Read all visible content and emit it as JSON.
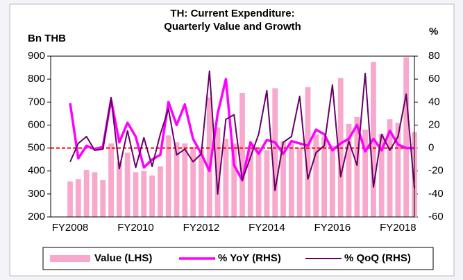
{
  "chart_data": {
    "type": "bar_line",
    "title": "TH: Current Expenditure:",
    "subtitle": "Quarterly Value and Growth",
    "ylabel": "Bn THB",
    "y2label": "%",
    "categories": [
      "FY2008",
      null,
      null,
      null,
      null,
      null,
      null,
      null,
      "FY2010",
      null,
      null,
      null,
      null,
      null,
      null,
      null,
      "FY2012",
      null,
      null,
      null,
      null,
      null,
      null,
      null,
      "FY2014",
      null,
      null,
      null,
      null,
      null,
      null,
      null,
      "FY2016",
      null,
      null,
      null,
      null,
      null,
      null,
      null,
      "FY2018",
      null,
      null
    ],
    "series": [
      {
        "name": "Value (LHS)",
        "kind": "bar",
        "color": "#f7a8cc",
        "values": [
          355,
          365,
          405,
          395,
          360,
          520,
          440,
          480,
          395,
          400,
          380,
          420,
          555,
          525,
          520,
          505,
          490,
          720,
          590,
          540,
          520,
          740,
          510,
          500,
          490,
          760,
          530,
          520,
          500,
          765,
          560,
          550,
          510,
          805,
          605,
          635,
          580,
          875,
          560,
          625,
          610,
          895,
          570
        ]
      },
      {
        "name": "% YoY (RHS)",
        "kind": "line",
        "axis": "y2",
        "color": "#ff00ff",
        "width": 3.5,
        "values": [
          39,
          -9,
          2,
          -1,
          1,
          42,
          5,
          22,
          10,
          -17,
          -10,
          -6,
          40,
          20,
          38,
          8,
          -5,
          -20,
          30,
          60,
          -15,
          -28,
          5,
          -5,
          7,
          5,
          -5,
          6,
          4,
          2,
          16,
          12,
          -2,
          4,
          8,
          20,
          -3,
          8,
          -2,
          15,
          3,
          0,
          0
        ]
      },
      {
        "name": "% QoQ (RHS)",
        "kind": "line",
        "axis": "y2",
        "color": "#660066",
        "width": 2,
        "values": [
          -12,
          4,
          10,
          -2,
          -1,
          44,
          -18,
          15,
          -17,
          9,
          -16,
          12,
          34,
          -6,
          -1,
          -12,
          -5,
          67,
          -40,
          25,
          29,
          -28,
          -8,
          12,
          50,
          -37,
          5,
          10,
          45,
          -27,
          -4,
          2,
          55,
          -25,
          6,
          -15,
          65,
          -34,
          12,
          -2,
          10,
          47,
          -35
        ]
      }
    ],
    "hline": {
      "value": 500,
      "color": "#ff0000"
    },
    "ylim": [
      200,
      900
    ],
    "yticks": [
      200,
      300,
      400,
      500,
      600,
      700,
      800,
      900
    ],
    "y2lim": [
      -60,
      80
    ],
    "y2ticks": [
      -60,
      -40,
      -20,
      0,
      20,
      40,
      60,
      80
    ]
  }
}
